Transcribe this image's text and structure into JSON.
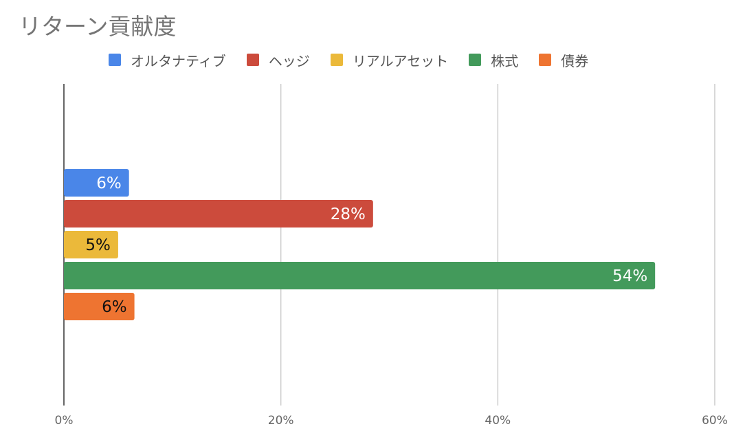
{
  "chart_data": {
    "type": "bar",
    "orientation": "horizontal",
    "title": "リターン貢献度",
    "xlabel": "",
    "ylabel": "",
    "xlim": [
      0,
      60
    ],
    "x_ticks": [
      "0%",
      "20%",
      "40%",
      "60%"
    ],
    "grid": true,
    "legend_position": "top",
    "series": [
      {
        "name": "オルタナティブ",
        "value": 6,
        "label": "6%",
        "color": "#4a86e8",
        "label_color": "#ffffff"
      },
      {
        "name": "ヘッジ",
        "value": 28.5,
        "label": "28%",
        "color": "#cc4b3c",
        "label_color": "#ffffff"
      },
      {
        "name": "リアルアセット",
        "value": 5,
        "label": "5%",
        "color": "#ebb93a",
        "label_color": "#111111"
      },
      {
        "name": "株式",
        "value": 54.5,
        "label": "54%",
        "color": "#439a5b",
        "label_color": "#ffffff"
      },
      {
        "name": "債券",
        "value": 6.5,
        "label": "6%",
        "color": "#ee7431",
        "label_color": "#111111"
      }
    ]
  }
}
